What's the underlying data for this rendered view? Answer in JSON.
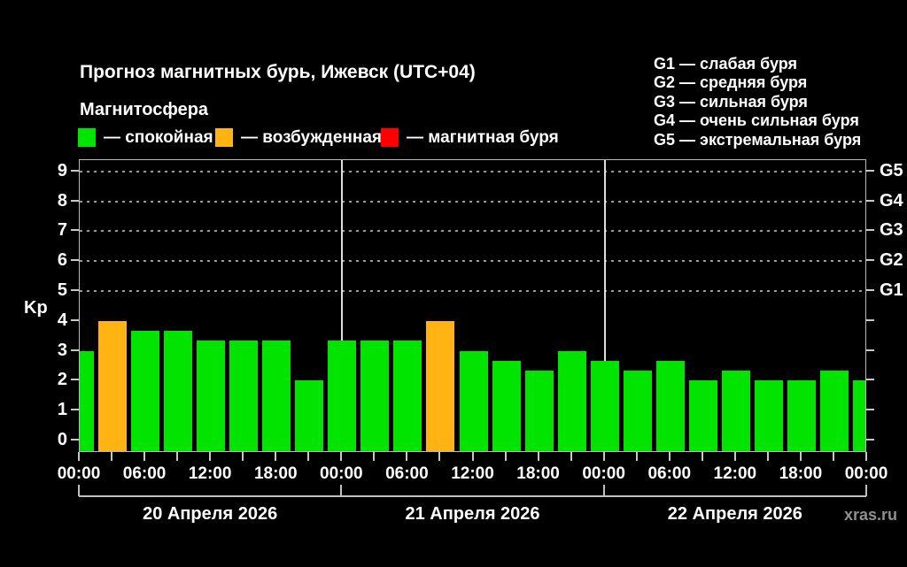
{
  "header": {
    "title": "Прогноз магнитных бурь, Ижевск (UTC+04)",
    "subtitle": "Магнитосфера"
  },
  "magnetosphere_legend": {
    "items": [
      {
        "label": "— спокойная",
        "state": "calm",
        "color": "#00e400"
      },
      {
        "label": "— возбужденная",
        "state": "excited",
        "color": "#ffb414"
      },
      {
        "label": "— магнитная буря",
        "state": "storm",
        "color": "#ff0000"
      }
    ]
  },
  "g_scale_legend": {
    "lines": [
      "G1 — слабая буря",
      "G2 — средняя буря",
      "G3 — сильная буря",
      "G4 — очень сильная буря",
      "G5 — экстремальная буря"
    ]
  },
  "watermark": "xras.ru",
  "chart_data": {
    "type": "bar",
    "title": "Прогноз магнитных бурь, Ижевск (UTC+04)",
    "ylabel": "Kp",
    "ylim": [
      0,
      9
    ],
    "yticks": [
      0,
      1,
      2,
      3,
      4,
      5,
      6,
      7,
      8,
      9
    ],
    "grid": "dashed horizontal lines at Kp 5-9",
    "grid_kp_levels": [
      5,
      6,
      7,
      8,
      9
    ],
    "right_axis_labels": [
      {
        "kp": 5,
        "label": "G1"
      },
      {
        "kp": 6,
        "label": "G2"
      },
      {
        "kp": 7,
        "label": "G3"
      },
      {
        "kp": 8,
        "label": "G4"
      },
      {
        "kp": 9,
        "label": "G5"
      }
    ],
    "x_tick_interval_hours": 3,
    "time_labels": [
      "00:00",
      "06:00",
      "12:00",
      "18:00",
      "00:00",
      "06:00",
      "12:00",
      "18:00",
      "00:00",
      "06:00",
      "12:00",
      "18:00",
      "00:00"
    ],
    "dates": [
      "20 Апреля 2026",
      "21 Апреля 2026",
      "22 Апреля 2026"
    ],
    "state_colors": {
      "calm": "#00e400",
      "excited": "#ffb414",
      "storm": "#ff0000"
    },
    "bars": [
      {
        "value": 3,
        "state": "calm"
      },
      {
        "value": 4,
        "state": "excited"
      },
      {
        "value": 3.67,
        "state": "calm"
      },
      {
        "value": 3.67,
        "state": "calm"
      },
      {
        "value": 3.33,
        "state": "calm"
      },
      {
        "value": 3.33,
        "state": "calm"
      },
      {
        "value": 3.33,
        "state": "calm"
      },
      {
        "value": 2,
        "state": "calm"
      },
      {
        "value": 3.33,
        "state": "calm"
      },
      {
        "value": 3.33,
        "state": "calm"
      },
      {
        "value": 3.33,
        "state": "calm"
      },
      {
        "value": 4,
        "state": "excited"
      },
      {
        "value": 3,
        "state": "calm"
      },
      {
        "value": 2.67,
        "state": "calm"
      },
      {
        "value": 2.33,
        "state": "calm"
      },
      {
        "value": 3,
        "state": "calm"
      },
      {
        "value": 2.67,
        "state": "calm"
      },
      {
        "value": 2.33,
        "state": "calm"
      },
      {
        "value": 2.67,
        "state": "calm"
      },
      {
        "value": 2,
        "state": "calm"
      },
      {
        "value": 2.33,
        "state": "calm"
      },
      {
        "value": 2,
        "state": "calm"
      },
      {
        "value": 2,
        "state": "calm"
      },
      {
        "value": 2.33,
        "state": "calm"
      },
      {
        "value": 2,
        "state": "calm"
      }
    ]
  }
}
